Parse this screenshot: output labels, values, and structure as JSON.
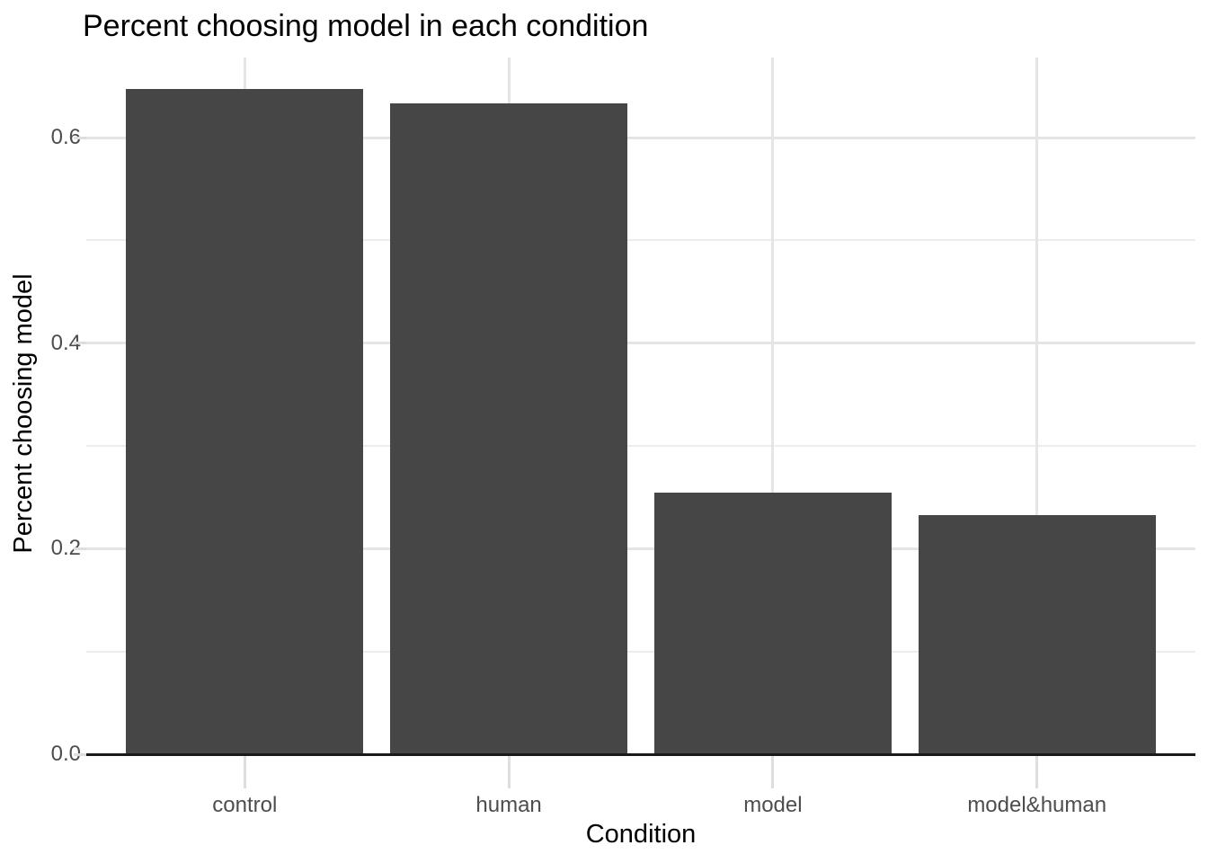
{
  "chart_data": {
    "type": "bar",
    "title": "Percent choosing model in each condition",
    "xlabel": "Condition",
    "ylabel": "Percent choosing model",
    "categories": [
      "control",
      "human",
      "model",
      "model&human"
    ],
    "values": [
      0.647,
      0.633,
      0.255,
      0.233
    ],
    "y_major_ticks": [
      0.0,
      0.2,
      0.4,
      0.6
    ],
    "y_tick_labels": [
      "0.0",
      "0.2",
      "0.4",
      "0.6"
    ],
    "y_minor_gridlines": [
      0.1,
      0.3,
      0.5
    ],
    "ylim": [
      0,
      0.678
    ],
    "bar_width_fraction": 0.9,
    "grid": true,
    "legend_position": "none",
    "colors": {
      "bar_fill": "#464646",
      "axis_text": "#4d4d4d",
      "title_text": "#000000",
      "axis_title_text": "#000000",
      "axis_line": "#1a1a1a",
      "grid_major": "#e5e5e5",
      "grid_minor": "#ececec",
      "tick_mark": "#dedede",
      "background": "#ffffff"
    }
  }
}
